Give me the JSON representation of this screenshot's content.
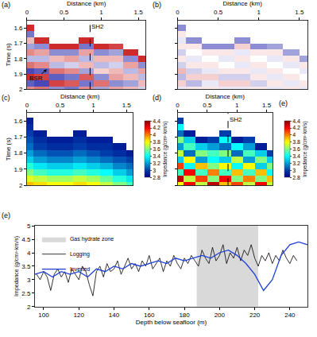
{
  "chart_data": [
    {
      "type": "heatmap",
      "panel_label": "(a)",
      "xlabel": "Distance (km)",
      "ylabel": "Time (s)",
      "xlim": [
        0,
        1.6
      ],
      "xticks": [
        0,
        0.5,
        1,
        1.5
      ],
      "ylim": [
        2,
        1.55
      ],
      "yticks": [
        1.6,
        1.7,
        1.8,
        1.9,
        2
      ],
      "color": "seismic",
      "zlim": [
        -1,
        1
      ],
      "well": {
        "text": "SH2",
        "x": 0.85
      },
      "annotations": [
        {
          "text": "BSR",
          "x": 0.27,
          "y": 1.87,
          "text_x": 0.12,
          "text_y": 1.93
        }
      ],
      "x": [
        0,
        0.2,
        0.4,
        0.6,
        0.8,
        1.0,
        1.2,
        1.4,
        1.6
      ],
      "y": [
        1.56,
        1.6,
        1.64,
        1.68,
        1.72,
        1.76,
        1.8,
        1.84,
        1.88,
        1.92,
        1.96,
        2.0
      ],
      "cells": [
        [
          null,
          null,
          null,
          null,
          null,
          null,
          null,
          null,
          null
        ],
        [
          0.9,
          null,
          null,
          null,
          null,
          null,
          null,
          null,
          null
        ],
        [
          -0.6,
          null,
          null,
          null,
          null,
          null,
          null,
          null,
          null
        ],
        [
          0.3,
          0.9,
          null,
          null,
          0.9,
          null,
          null,
          null,
          null
        ],
        [
          -0.4,
          -0.5,
          0.9,
          0.9,
          -0.6,
          0.9,
          0.8,
          null,
          null
        ],
        [
          0.5,
          0.4,
          -0.5,
          -0.5,
          0.4,
          -0.5,
          -0.4,
          0.9,
          null
        ],
        [
          -0.3,
          -0.3,
          0.3,
          0.4,
          -0.3,
          0.3,
          0.3,
          -0.5,
          0.9
        ],
        [
          0.6,
          0.5,
          -0.3,
          -0.2,
          0.3,
          -0.3,
          -0.2,
          0.4,
          -0.5
        ],
        [
          -0.8,
          -0.7,
          0.6,
          0.5,
          -0.4,
          0.2,
          0.3,
          -0.3,
          0.4
        ],
        [
          0.9,
          0.8,
          -0.7,
          -0.6,
          0.7,
          -0.5,
          0.4,
          0.3,
          -0.3
        ],
        [
          -0.7,
          -0.8,
          0.8,
          0.7,
          -0.6,
          0.6,
          -0.5,
          -0.4,
          0.3
        ],
        [
          0.5,
          0.6,
          -0.5,
          -0.6,
          0.5,
          -0.4,
          0.4,
          0.3,
          -0.2
        ]
      ]
    },
    {
      "type": "heatmap",
      "panel_label": "(b)",
      "xlabel": "Distance (km)",
      "tick_labels": "x",
      "xlim": [
        0,
        1.6
      ],
      "xticks": [
        0,
        0.5,
        1,
        1.5
      ],
      "ylim": [
        2,
        1.55
      ],
      "yticks": [
        1.6,
        1.7,
        1.8,
        1.9,
        2
      ],
      "color": "seismic",
      "zlim": [
        -1,
        1
      ],
      "x": [
        0,
        0.2,
        0.4,
        0.6,
        0.8,
        1.0,
        1.2,
        1.4,
        1.6
      ],
      "y": [
        1.56,
        1.6,
        1.64,
        1.68,
        1.72,
        1.76,
        1.8,
        1.84,
        1.88,
        1.92,
        1.96,
        2.0
      ],
      "cells": [
        [
          null,
          null,
          null,
          null,
          null,
          null,
          null,
          null,
          null
        ],
        [
          -0.5,
          null,
          null,
          null,
          null,
          null,
          null,
          null,
          null
        ],
        [
          0.1,
          null,
          null,
          null,
          null,
          null,
          null,
          null,
          null
        ],
        [
          -0.1,
          -0.5,
          null,
          null,
          -0.5,
          null,
          null,
          null,
          null
        ],
        [
          0.1,
          0.1,
          -0.5,
          -0.5,
          0.2,
          -0.5,
          -0.4,
          null,
          null
        ],
        [
          -0.2,
          0.0,
          0.1,
          0.1,
          -0.1,
          0.1,
          0.1,
          -0.4,
          null
        ],
        [
          0.1,
          -0.1,
          0.0,
          -0.1,
          0.1,
          0.0,
          -0.1,
          0.1,
          -0.4
        ],
        [
          -0.2,
          0.1,
          0.1,
          0.0,
          -0.1,
          0.1,
          0.0,
          -0.1,
          0.1
        ],
        [
          0.3,
          -0.2,
          -0.1,
          0.1,
          0.1,
          -0.1,
          0.1,
          0.0,
          -0.1
        ],
        [
          -0.3,
          0.2,
          0.2,
          -0.2,
          -0.2,
          0.1,
          -0.1,
          0.1,
          0.0
        ],
        [
          0.2,
          -0.3,
          -0.1,
          0.2,
          0.2,
          -0.2,
          0.1,
          -0.1,
          0.1
        ],
        [
          -0.1,
          0.1,
          0.1,
          -0.1,
          -0.1,
          0.1,
          -0.1,
          0.1,
          -0.1
        ]
      ]
    },
    {
      "type": "heatmap",
      "panel_label": "(c)",
      "xlabel": "Distance (km)",
      "ylabel": "Time (s)",
      "xlim": [
        0,
        1.6
      ],
      "xticks": [
        0,
        0.5,
        1,
        1.5
      ],
      "ylim": [
        2,
        1.55
      ],
      "yticks": [
        1.6,
        1.7,
        1.8,
        1.9,
        2
      ],
      "color": "jet",
      "zlim": [
        2.8,
        4.4
      ],
      "zticks": [
        2.8,
        3,
        3.2,
        3.4,
        3.6,
        3.8,
        4,
        4.2,
        4.4
      ],
      "colorbar_title": "Impedance (g/cm³·km/s)",
      "x": [
        0,
        0.2,
        0.4,
        0.6,
        0.8,
        1.0,
        1.2,
        1.4,
        1.6
      ],
      "y": [
        1.56,
        1.6,
        1.64,
        1.68,
        1.72,
        1.76,
        1.8,
        1.84,
        1.88,
        1.92,
        1.96,
        2.0
      ],
      "cells": [
        [
          null,
          null,
          null,
          null,
          null,
          null,
          null,
          null,
          null
        ],
        [
          2.9,
          null,
          null,
          null,
          null,
          null,
          null,
          null,
          null
        ],
        [
          2.95,
          null,
          null,
          null,
          null,
          null,
          null,
          null,
          null
        ],
        [
          3.0,
          2.9,
          null,
          null,
          2.9,
          null,
          null,
          null,
          null
        ],
        [
          3.05,
          2.95,
          2.9,
          2.9,
          2.95,
          2.9,
          2.9,
          null,
          null
        ],
        [
          3.1,
          3.0,
          2.95,
          2.95,
          3.0,
          2.95,
          2.95,
          2.9,
          null
        ],
        [
          3.2,
          3.1,
          3.05,
          3.05,
          3.1,
          3.05,
          3.0,
          2.95,
          2.9
        ],
        [
          3.3,
          3.2,
          3.15,
          3.15,
          3.2,
          3.15,
          3.1,
          3.05,
          3.0
        ],
        [
          3.45,
          3.35,
          3.3,
          3.3,
          3.35,
          3.3,
          3.25,
          3.15,
          3.1
        ],
        [
          3.6,
          3.5,
          3.45,
          3.45,
          3.5,
          3.45,
          3.4,
          3.3,
          3.2
        ],
        [
          3.75,
          3.7,
          3.65,
          3.65,
          3.7,
          3.65,
          3.55,
          3.45,
          3.35
        ],
        [
          3.9,
          3.85,
          3.8,
          3.8,
          3.85,
          3.8,
          3.7,
          3.6,
          3.5
        ]
      ]
    },
    {
      "type": "heatmap",
      "panel_label": "(d)",
      "extra_label": "(e)",
      "xlabel": "Distance (km)",
      "tick_labels": "x",
      "xlim": [
        0,
        1.6
      ],
      "xticks": [
        0,
        0.5,
        1,
        1.5
      ],
      "ylim": [
        2,
        1.55
      ],
      "yticks": [
        1.6,
        1.7,
        1.8,
        1.9,
        2
      ],
      "color": "jet",
      "zlim": [
        2.8,
        4.4
      ],
      "zticks": [
        2.8,
        3,
        3.2,
        3.4,
        3.6,
        3.8,
        4,
        4.2,
        4.4
      ],
      "colorbar_title": "Impedance (g/cm³·km/s)",
      "well": {
        "text": "SH2",
        "x": 0.85
      },
      "x": [
        0,
        0.2,
        0.4,
        0.6,
        0.8,
        1.0,
        1.2,
        1.4,
        1.6
      ],
      "y": [
        1.56,
        1.6,
        1.64,
        1.68,
        1.72,
        1.76,
        1.8,
        1.84,
        1.88,
        1.92,
        1.96,
        2.0
      ],
      "cells": [
        [
          null,
          null,
          null,
          null,
          null,
          null,
          null,
          null,
          null
        ],
        [
          3.0,
          null,
          null,
          null,
          null,
          null,
          null,
          null,
          null
        ],
        [
          3.4,
          null,
          null,
          null,
          null,
          null,
          null,
          null,
          null
        ],
        [
          3.1,
          2.9,
          null,
          null,
          3.0,
          null,
          null,
          null,
          null
        ],
        [
          3.6,
          3.3,
          2.9,
          3.0,
          3.4,
          2.9,
          3.0,
          null,
          null
        ],
        [
          3.2,
          3.5,
          3.3,
          3.2,
          3.1,
          3.4,
          3.2,
          2.9,
          null
        ],
        [
          3.7,
          3.1,
          3.6,
          3.5,
          3.6,
          3.1,
          3.5,
          3.3,
          3.0
        ],
        [
          3.3,
          3.8,
          3.2,
          3.4,
          3.3,
          3.7,
          3.2,
          3.6,
          3.3
        ],
        [
          4.1,
          3.4,
          3.9,
          3.6,
          3.8,
          3.4,
          3.8,
          3.3,
          3.6
        ],
        [
          3.5,
          4.2,
          3.5,
          4.0,
          3.5,
          3.9,
          3.5,
          3.9,
          3.4
        ],
        [
          4.3,
          3.7,
          4.1,
          3.6,
          4.2,
          3.6,
          4.0,
          3.6,
          3.9
        ],
        [
          3.8,
          4.2,
          3.7,
          4.3,
          3.9,
          4.1,
          3.7,
          4.2,
          3.7
        ]
      ]
    },
    {
      "type": "line",
      "panel_label": "(e)",
      "xlabel": "Depth below seafloor (m)",
      "ylabel": "Impedance (g/cm³·km/s)",
      "xlim": [
        95,
        250
      ],
      "xticks": [
        100,
        120,
        140,
        160,
        180,
        200,
        220,
        240
      ],
      "ylim": [
        2,
        5
      ],
      "yticks": [
        2,
        2.5,
        3,
        3.5,
        4,
        4.5,
        5
      ],
      "legend": "upper left",
      "zone": {
        "name": "Gas hydrate zone",
        "x": [
          187,
          222
        ],
        "color": "#d9d9d9"
      },
      "series": [
        {
          "name": "Logging",
          "color": "#000000",
          "x": [
            96,
            98,
            100,
            102,
            104,
            106,
            108,
            110,
            112,
            114,
            116,
            118,
            120,
            122,
            124,
            126,
            128,
            130,
            132,
            134,
            136,
            138,
            140,
            142,
            144,
            146,
            148,
            150,
            152,
            154,
            156,
            158,
            160,
            162,
            164,
            166,
            168,
            170,
            172,
            174,
            176,
            178,
            180,
            182,
            184,
            186,
            188,
            190,
            192,
            194,
            196,
            198,
            200,
            202,
            204,
            206,
            208,
            210,
            212,
            214,
            216,
            218,
            220,
            222,
            224,
            226,
            228,
            230,
            232,
            234,
            236,
            238,
            240,
            242,
            244
          ],
          "values": [
            3.2,
            3.0,
            3.3,
            3.1,
            2.6,
            3.2,
            3.4,
            3.1,
            3.3,
            2.9,
            3.4,
            3.2,
            3.0,
            3.5,
            3.3,
            2.8,
            2.4,
            3.3,
            3.5,
            3.1,
            3.6,
            3.3,
            3.4,
            3.7,
            3.2,
            3.5,
            3.8,
            3.4,
            3.6,
            3.3,
            3.7,
            3.5,
            3.9,
            3.4,
            3.6,
            3.8,
            3.3,
            3.7,
            3.5,
            3.9,
            3.6,
            3.4,
            3.8,
            3.6,
            3.9,
            3.7,
            3.5,
            4.1,
            3.8,
            3.6,
            4.2,
            3.7,
            3.9,
            4.3,
            3.6,
            4.0,
            3.8,
            4.2,
            3.7,
            4.1,
            3.9,
            4.3,
            3.8,
            3.5,
            3.9,
            3.7,
            4.0,
            3.6,
            3.9,
            3.7,
            4.1,
            3.8,
            3.6,
            3.9,
            3.7
          ]
        },
        {
          "name": "Inverted",
          "color": "#1f3fd6",
          "x": [
            95,
            100,
            105,
            110,
            115,
            120,
            125,
            130,
            135,
            140,
            145,
            150,
            155,
            160,
            165,
            170,
            175,
            180,
            185,
            190,
            195,
            200,
            205,
            210,
            215,
            220,
            225,
            230,
            235,
            240,
            245,
            250
          ],
          "values": [
            3.2,
            3.3,
            3.1,
            3.3,
            3.2,
            3.3,
            3.1,
            3.4,
            3.3,
            3.5,
            3.4,
            3.6,
            3.5,
            3.6,
            3.7,
            3.6,
            3.8,
            3.7,
            3.8,
            3.9,
            3.8,
            4.0,
            4.1,
            3.9,
            3.6,
            3.2,
            2.6,
            3.0,
            3.9,
            4.3,
            4.4,
            4.3
          ]
        }
      ]
    }
  ]
}
